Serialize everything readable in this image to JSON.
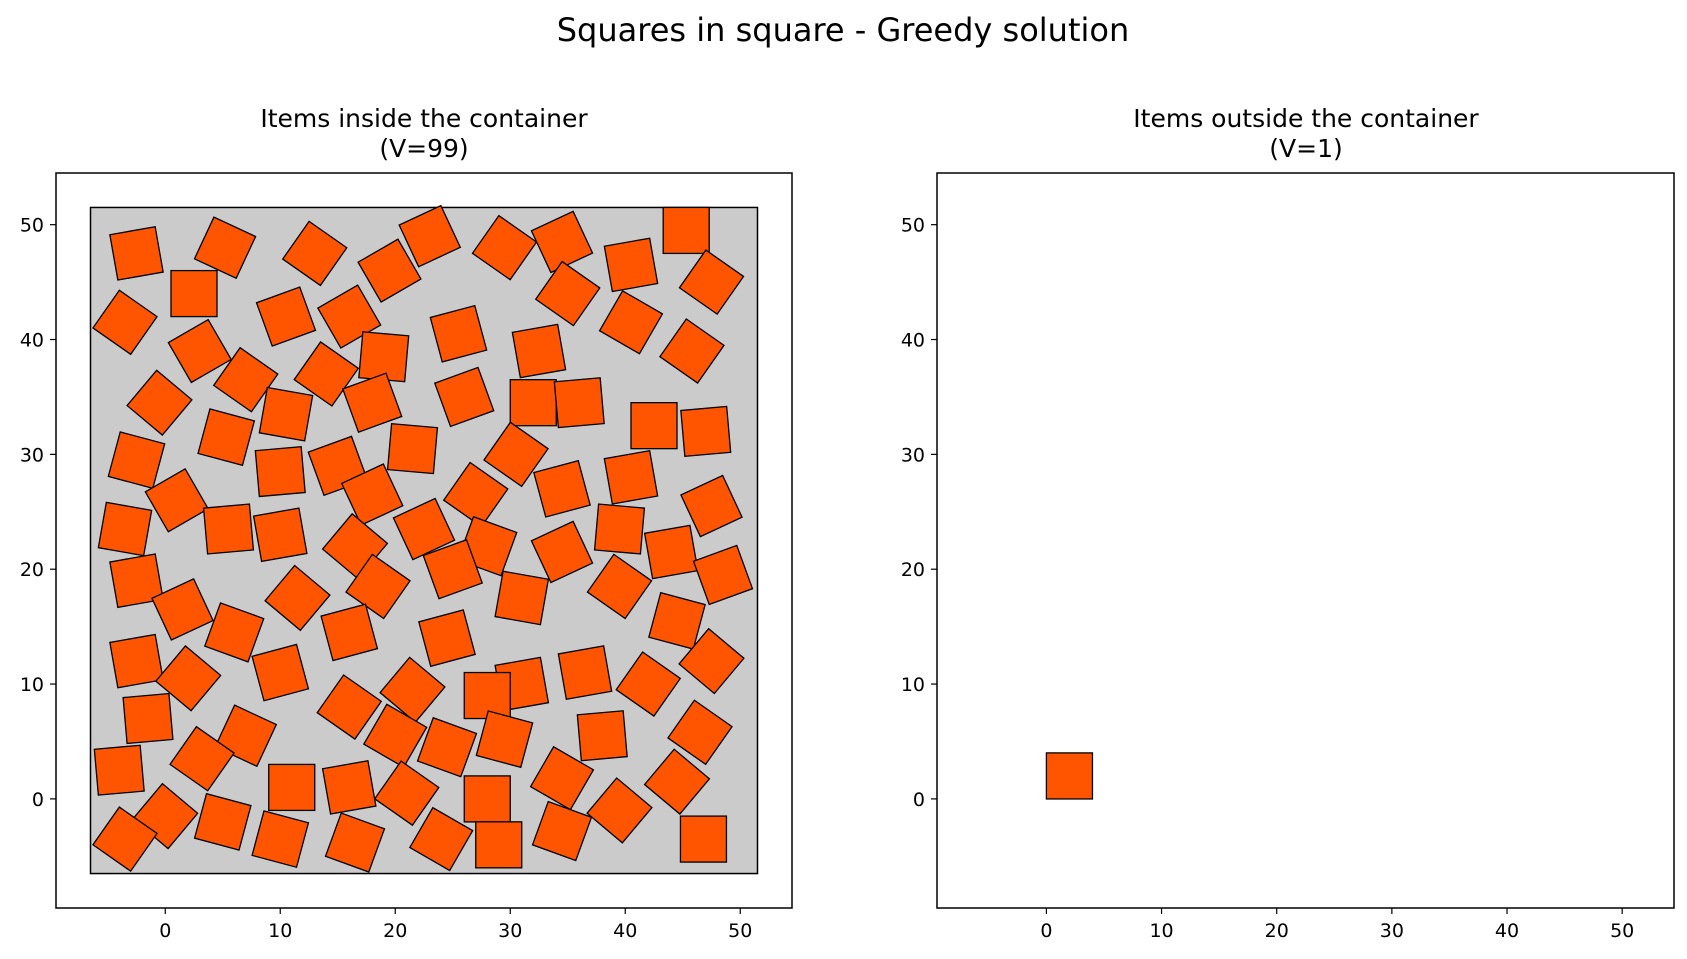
{
  "figure": {
    "title": "Squares in square - Greedy solution"
  },
  "chart_data": [
    {
      "type": "scatter",
      "title_line1": "Items inside the container",
      "title_line2": "(V=99)",
      "xlim": [
        -9.5,
        54.5
      ],
      "ylim": [
        -9.5,
        54.5
      ],
      "xticks": [
        "0",
        "10",
        "20",
        "30",
        "40",
        "50"
      ],
      "yticks": [
        "0",
        "10",
        "20",
        "30",
        "40",
        "50"
      ],
      "grid": false,
      "container": {
        "x0": -6.5,
        "y0": -6.5,
        "x1": 51.5,
        "y1": 51.5,
        "color": "#cbcbcb"
      },
      "item_color": "#ff5500",
      "item_size": 4,
      "items": [
        [
          -2.5,
          47.5,
          10
        ],
        [
          2.5,
          44,
          0
        ],
        [
          5.2,
          48,
          -25
        ],
        [
          13,
          47.5,
          -35
        ],
        [
          19.5,
          46,
          30
        ],
        [
          23,
          49,
          25
        ],
        [
          29.5,
          48,
          -35
        ],
        [
          34.5,
          48.5,
          25
        ],
        [
          45.3,
          49.5,
          0
        ],
        [
          47.5,
          45,
          -35
        ],
        [
          -3.5,
          41.5,
          -35
        ],
        [
          3,
          39,
          30
        ],
        [
          10.5,
          42,
          20
        ],
        [
          16,
          42,
          30
        ],
        [
          19,
          38.5,
          -5
        ],
        [
          25.5,
          40.5,
          15
        ],
        [
          32.5,
          39,
          10
        ],
        [
          35,
          44,
          -35
        ],
        [
          40.5,
          41.5,
          -30
        ],
        [
          40.5,
          46.5,
          10
        ],
        [
          45.8,
          39,
          -35
        ],
        [
          -0.5,
          34.5,
          -40
        ],
        [
          7,
          36.5,
          -35
        ],
        [
          14,
          37,
          -35
        ],
        [
          18,
          34.5,
          20
        ],
        [
          10.5,
          33.5,
          -10
        ],
        [
          26,
          35,
          20
        ],
        [
          32,
          34.5,
          0
        ],
        [
          36,
          34.5,
          5
        ],
        [
          42.5,
          32.5,
          0
        ],
        [
          47,
          32,
          5
        ],
        [
          -2.5,
          29.5,
          -15
        ],
        [
          5.3,
          31.5,
          -15
        ],
        [
          10,
          28.5,
          5
        ],
        [
          15,
          29,
          20
        ],
        [
          21.5,
          30.5,
          -5
        ],
        [
          30.5,
          30,
          -35
        ],
        [
          18,
          26.5,
          25
        ],
        [
          27,
          26.5,
          -35
        ],
        [
          34.5,
          27,
          15
        ],
        [
          40.5,
          28,
          10
        ],
        [
          -3.5,
          23.5,
          -10
        ],
        [
          1,
          26,
          30
        ],
        [
          5.5,
          23.5,
          5
        ],
        [
          10,
          23,
          10
        ],
        [
          16.5,
          22,
          -40
        ],
        [
          22.5,
          23.5,
          25
        ],
        [
          28,
          22,
          -20
        ],
        [
          34.5,
          21.5,
          25
        ],
        [
          39.5,
          23.5,
          -5
        ],
        [
          44,
          21.5,
          10
        ],
        [
          47.5,
          25.5,
          25
        ],
        [
          -2.5,
          19,
          10
        ],
        [
          1.5,
          16.5,
          25
        ],
        [
          6,
          14.5,
          -20
        ],
        [
          11.5,
          17.5,
          -40
        ],
        [
          18.5,
          18.5,
          -35
        ],
        [
          25,
          20,
          20
        ],
        [
          31,
          17.5,
          -10
        ],
        [
          39.5,
          18.5,
          -35
        ],
        [
          44.5,
          15.5,
          -15
        ],
        [
          48.5,
          19.5,
          20
        ],
        [
          -2.5,
          12,
          10
        ],
        [
          2,
          10.5,
          -40
        ],
        [
          10,
          11,
          15
        ],
        [
          16,
          14.5,
          15
        ],
        [
          24.5,
          14,
          15
        ],
        [
          21.5,
          9.5,
          -40
        ],
        [
          16,
          8,
          -35
        ],
        [
          31,
          10,
          10
        ],
        [
          36.5,
          11,
          10
        ],
        [
          42,
          10,
          -35
        ],
        [
          47.5,
          12,
          -40
        ],
        [
          28,
          9,
          0
        ],
        [
          -1.5,
          7,
          5
        ],
        [
          7,
          5.5,
          -25
        ],
        [
          3.2,
          3.5,
          -35
        ],
        [
          20,
          5.5,
          -30
        ],
        [
          24.5,
          4.5,
          -20
        ],
        [
          29.5,
          5.2,
          -15
        ],
        [
          38,
          5.5,
          5
        ],
        [
          46.5,
          5.8,
          -35
        ],
        [
          -4,
          2.5,
          5
        ],
        [
          11,
          1,
          0
        ],
        [
          16,
          1,
          10
        ],
        [
          21,
          0.5,
          -35
        ],
        [
          28,
          0,
          0
        ],
        [
          34.5,
          1.8,
          -30
        ],
        [
          44.5,
          1.5,
          -40
        ],
        [
          0,
          -1.5,
          -40
        ],
        [
          -3.5,
          -3.5,
          -35
        ],
        [
          5,
          -2,
          -15
        ],
        [
          10,
          -3.5,
          -15
        ],
        [
          16.5,
          -3.8,
          -20
        ],
        [
          24,
          -3.5,
          -30
        ],
        [
          29,
          -4,
          0
        ],
        [
          34.5,
          -2.8,
          -20
        ],
        [
          39.5,
          -1,
          -40
        ],
        [
          46.8,
          -3.5,
          0
        ]
      ]
    },
    {
      "type": "scatter",
      "title_line1": "Items outside the container",
      "title_line2": "(V=1)",
      "xlim": [
        -9.5,
        54.5
      ],
      "ylim": [
        -9.5,
        54.5
      ],
      "xticks": [
        "0",
        "10",
        "20",
        "30",
        "40",
        "50"
      ],
      "yticks": [
        "0",
        "10",
        "20",
        "30",
        "40",
        "50"
      ],
      "grid": false,
      "item_color": "#ff5500",
      "item_size": 4,
      "items": [
        [
          2,
          2,
          0
        ]
      ]
    }
  ]
}
